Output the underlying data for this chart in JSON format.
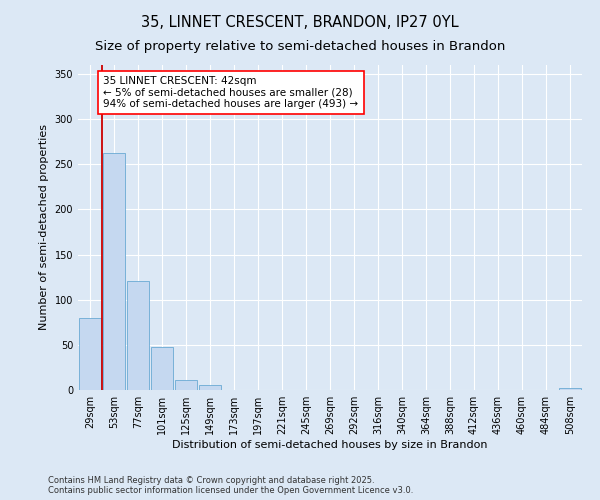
{
  "title1": "35, LINNET CRESCENT, BRANDON, IP27 0YL",
  "title2": "Size of property relative to semi-detached houses in Brandon",
  "xlabel": "Distribution of semi-detached houses by size in Brandon",
  "ylabel": "Number of semi-detached properties",
  "categories": [
    "29sqm",
    "53sqm",
    "77sqm",
    "101sqm",
    "125sqm",
    "149sqm",
    "173sqm",
    "197sqm",
    "221sqm",
    "245sqm",
    "269sqm",
    "292sqm",
    "316sqm",
    "340sqm",
    "364sqm",
    "388sqm",
    "412sqm",
    "436sqm",
    "460sqm",
    "484sqm",
    "508sqm"
  ],
  "values": [
    80,
    262,
    121,
    48,
    11,
    5,
    0,
    0,
    0,
    0,
    0,
    0,
    0,
    0,
    0,
    0,
    0,
    0,
    0,
    0,
    2
  ],
  "bar_color": "#c5d8f0",
  "bar_edge_color": "#6aaad4",
  "marker_color": "#cc0000",
  "annotation_title": "35 LINNET CRESCENT: 42sqm",
  "annotation_line1": "← 5% of semi-detached houses are smaller (28)",
  "annotation_line2": "94% of semi-detached houses are larger (493) →",
  "ylim": [
    0,
    360
  ],
  "yticks": [
    0,
    50,
    100,
    150,
    200,
    250,
    300,
    350
  ],
  "footer1": "Contains HM Land Registry data © Crown copyright and database right 2025.",
  "footer2": "Contains public sector information licensed under the Open Government Licence v3.0.",
  "bg_color": "#dce8f5",
  "plot_bg_color": "#dce8f5",
  "title1_fontsize": 10.5,
  "title2_fontsize": 9.5,
  "axis_label_fontsize": 8,
  "tick_fontsize": 7,
  "annotation_fontsize": 7.5,
  "footer_fontsize": 6
}
